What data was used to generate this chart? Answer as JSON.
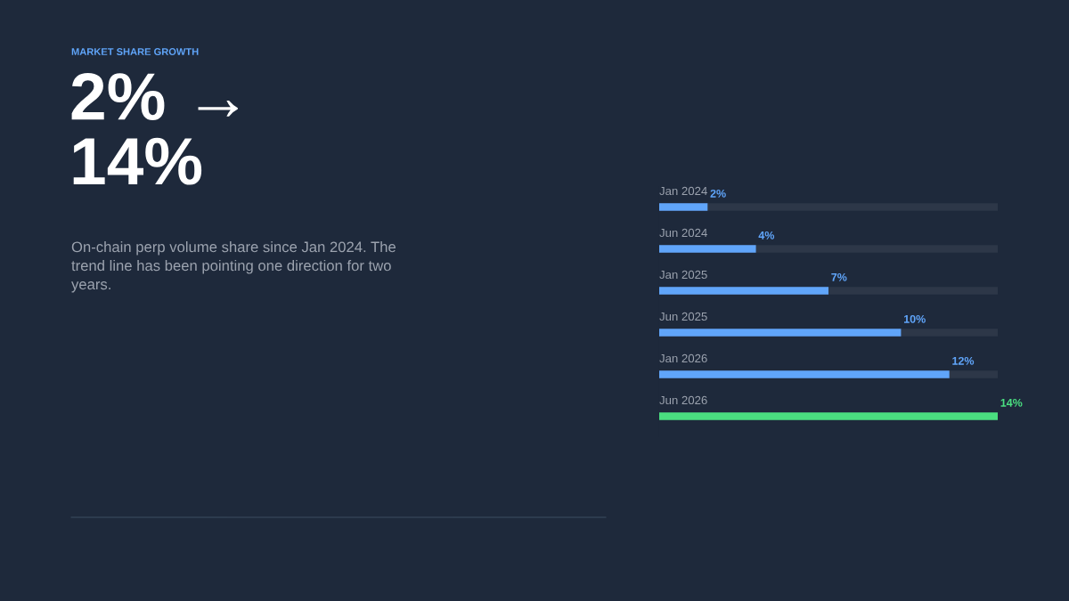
{
  "chart_data": {
    "type": "bar",
    "orientation": "horizontal",
    "subtitle": "MARKET SHARE GROWTH",
    "title": "2% → 14%",
    "annotations": [
      "On-chain perp volume share since Jan 2024. The trend line has been pointing one direction for two years."
    ],
    "categories": [
      "Jan 2024",
      "Jun 2024",
      "Jan 2025",
      "Jun 2025",
      "Jan 2026",
      "Jun 2026"
    ],
    "series": [
      {
        "colors": [
          "#60a5fa",
          "#60a5fa",
          "#60a5fa",
          "#60a5fa",
          "#60a5fa",
          "#4ade80"
        ],
        "values": [
          2,
          4,
          7,
          10,
          12,
          14
        ],
        "value_labels": [
          "2%",
          "4%",
          "7%",
          "10%",
          "12%",
          "14%"
        ]
      }
    ],
    "tick_labels": "y"
  }
}
